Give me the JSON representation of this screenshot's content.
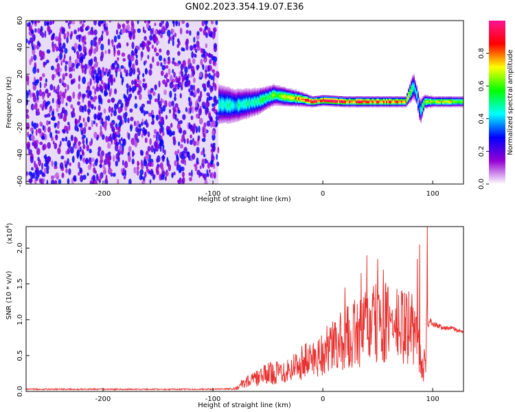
{
  "figure": {
    "title": "GN02.2023.354.19.07.E36"
  },
  "chart_data": [
    {
      "type": "heatmap",
      "xlabel": "Height of straight line (km)",
      "ylabel": "Frequency (Hz)",
      "xlim": [
        -270,
        128
      ],
      "ylim": [
        -62,
        60
      ],
      "x_ticks": [
        -200,
        -100,
        0,
        100
      ],
      "y_ticks": [
        -60,
        -40,
        -20,
        0,
        20,
        40,
        60
      ],
      "colorbar": {
        "label": "Normalized spectral amplitude",
        "range": [
          0,
          1
        ],
        "ticks": [
          "0.0",
          "0.2",
          "0.4",
          "0.6",
          "0.8"
        ],
        "tick_values": [
          0,
          0.2,
          0.4,
          0.6,
          0.8
        ],
        "colors": [
          "#ffffff",
          "#9400d3",
          "#0000ff",
          "#00ffff",
          "#00ff00",
          "#ffff00",
          "#ff0000",
          "#ff1493"
        ]
      },
      "noise_region": {
        "x_range": [
          -270,
          -95
        ],
        "description_level": 0.35
      },
      "signal_band": {
        "x": [
          -95,
          -80,
          -60,
          -45,
          -30,
          -20,
          -10,
          0,
          20,
          40,
          60,
          75,
          82,
          85,
          88,
          92,
          100,
          128
        ],
        "center_hz": [
          -2,
          -3,
          0,
          5,
          3,
          2,
          0,
          1,
          0,
          0,
          0,
          0,
          12,
          5,
          -8,
          0,
          0,
          0
        ],
        "halfwidth_hz": [
          12,
          10,
          8,
          6,
          5,
          4,
          3,
          3,
          3,
          3,
          3,
          3,
          8,
          6,
          8,
          4,
          3,
          3
        ],
        "peak_amplitude": [
          0.45,
          0.45,
          0.5,
          0.6,
          0.7,
          0.8,
          0.95,
          0.9,
          0.9,
          0.9,
          0.85,
          0.8,
          0.5,
          0.45,
          0.4,
          0.6,
          0.7,
          0.7
        ]
      }
    },
    {
      "type": "line",
      "xlabel": "Height of straight line (km)",
      "ylabel": "SNR (10 * v/v)",
      "y_multiplier": "(x10",
      "y_multiplier_exp": "4",
      "y_multiplier_close": ")",
      "xlim": [
        -270,
        128
      ],
      "ylim": [
        0,
        2.3
      ],
      "x_ticks": [
        -200,
        -100,
        0,
        100
      ],
      "y_ticks": [
        "0.0",
        "0.5",
        "1.0",
        "1.5",
        "2.0"
      ],
      "y_tick_values": [
        0,
        0.5,
        1.0,
        1.5,
        2.0
      ],
      "color": "#e8312f",
      "series": [
        {
          "x": [
            -270,
            -200,
            -100,
            -80,
            -70,
            -60,
            -50,
            -40,
            -30,
            -20,
            -10,
            0,
            10,
            20,
            30,
            40,
            50,
            60,
            70,
            80,
            85,
            88,
            90,
            92,
            95,
            98,
            100,
            110,
            120,
            128
          ],
          "envelope": [
            0.03,
            0.03,
            0.03,
            0.04,
            0.15,
            0.2,
            0.28,
            0.3,
            0.35,
            0.45,
            0.5,
            0.6,
            0.7,
            0.8,
            0.9,
            1.0,
            1.05,
            1.05,
            1.0,
            1.0,
            0.9,
            0.55,
            0.3,
            0.4,
            0.9,
            1.0,
            0.95,
            0.9,
            0.88,
            0.82
          ],
          "spikes": [
            {
              "x": 20,
              "y": 1.45
            },
            {
              "x": 35,
              "y": 1.65
            },
            {
              "x": 40,
              "y": 1.9
            },
            {
              "x": 50,
              "y": 1.85
            },
            {
              "x": 55,
              "y": 1.7
            },
            {
              "x": 86,
              "y": 1.85
            },
            {
              "x": 88,
              "y": 2.05
            },
            {
              "x": 95,
              "y": 2.3
            }
          ]
        }
      ]
    }
  ]
}
